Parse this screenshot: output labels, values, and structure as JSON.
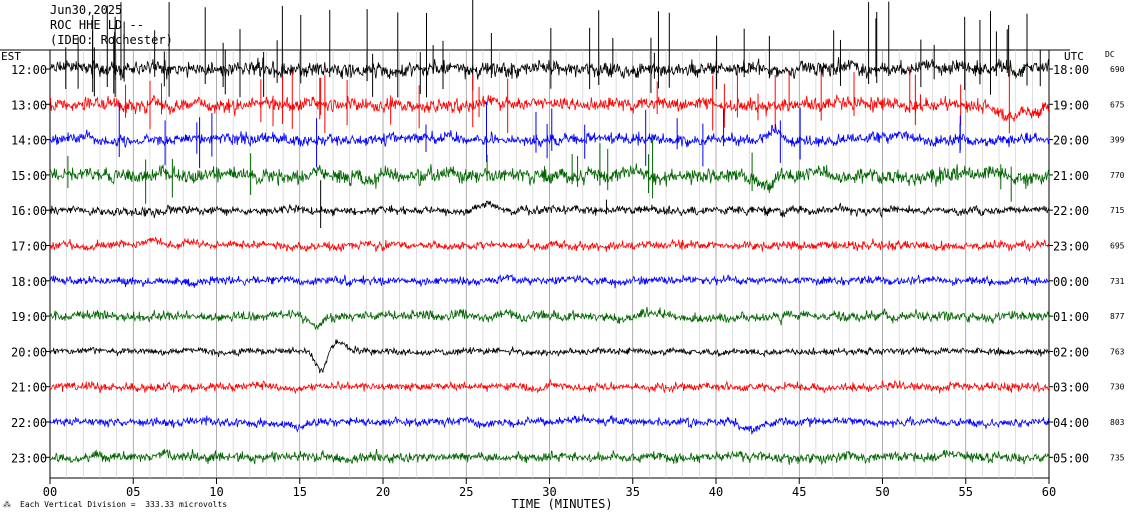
{
  "header": {
    "date": "Jun30,2025",
    "station": "ROC HHE LD --",
    "network": "(IDEO: Rochester)"
  },
  "chart_data": {
    "type": "line",
    "title": "",
    "xlabel": "TIME (MINUTES)",
    "x_ticks": [
      "00",
      "05",
      "10",
      "15",
      "20",
      "25",
      "30",
      "35",
      "40",
      "45",
      "50",
      "55",
      "60"
    ],
    "xlim": [
      0,
      60
    ],
    "left_axis_label": "EST",
    "right_axis_label": "UTC",
    "dc_label": "DC",
    "rows": [
      {
        "est": "12:00",
        "utc": "18:00",
        "dc": "690",
        "color": "#000000",
        "amp": 9,
        "spikes": 60,
        "events": []
      },
      {
        "est": "13:00",
        "utc": "19:00",
        "dc": "675",
        "color": "#ff0000",
        "amp": 8,
        "spikes": 30,
        "events": [
          {
            "t": 58,
            "a": 10,
            "w": 2
          }
        ]
      },
      {
        "est": "14:00",
        "utc": "20:00",
        "dc": "399",
        "color": "#0000ff",
        "amp": 7,
        "spikes": 20,
        "events": [
          {
            "t": 43.6,
            "a": -12,
            "w": 0.6
          }
        ]
      },
      {
        "est": "15:00",
        "utc": "21:00",
        "dc": "770",
        "color": "#006400",
        "amp": 9,
        "spikes": 14,
        "events": [
          {
            "t": 43,
            "a": 14,
            "w": 0.5
          }
        ]
      },
      {
        "est": "16:00",
        "utc": "22:00",
        "dc": "715",
        "color": "#000000",
        "amp": 5,
        "spikes": 2,
        "events": [
          {
            "t": 26.5,
            "a": -6,
            "w": 0.8
          }
        ]
      },
      {
        "est": "17:00",
        "utc": "23:00",
        "dc": "695",
        "color": "#ff0000",
        "amp": 5,
        "spikes": 0,
        "events": [
          {
            "t": 6.2,
            "a": -6,
            "w": 0.6
          },
          {
            "t": 8.5,
            "a": -5,
            "w": 0.5
          }
        ]
      },
      {
        "est": "18:00",
        "utc": "00:00",
        "dc": "731",
        "color": "#0000ff",
        "amp": 5,
        "spikes": 0,
        "events": []
      },
      {
        "est": "19:00",
        "utc": "01:00",
        "dc": "877",
        "color": "#006400",
        "amp": 6,
        "spikes": 0,
        "events": [
          {
            "t": 16,
            "a": 10,
            "w": 0.5
          }
        ]
      },
      {
        "est": "20:00",
        "utc": "02:00",
        "dc": "763",
        "color": "#000000",
        "amp": 4,
        "spikes": 0,
        "events": [
          {
            "t": 16.3,
            "a": 22,
            "w": 0.5
          },
          {
            "t": 17.3,
            "a": -10,
            "w": 0.7
          }
        ]
      },
      {
        "est": "21:00",
        "utc": "03:00",
        "dc": "730",
        "color": "#ff0000",
        "amp": 5,
        "spikes": 0,
        "events": []
      },
      {
        "est": "22:00",
        "utc": "04:00",
        "dc": "803",
        "color": "#0000ff",
        "amp": 5,
        "spikes": 0,
        "events": [
          {
            "t": 15,
            "a": 6,
            "w": 0.8
          },
          {
            "t": 42,
            "a": 8,
            "w": 0.8
          }
        ]
      },
      {
        "est": "23:00",
        "utc": "05:00",
        "dc": "735",
        "color": "#006400",
        "amp": 6,
        "spikes": 0,
        "events": []
      }
    ]
  },
  "footer": {
    "scale_note": "Each Vertical Division =  333.33 microvolts"
  }
}
